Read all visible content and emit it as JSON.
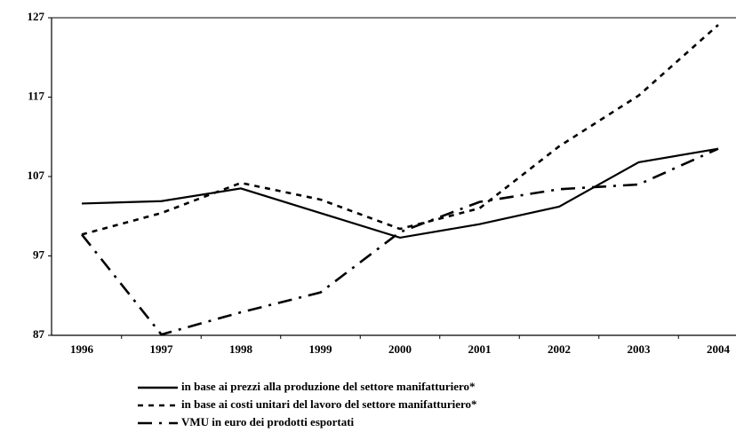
{
  "chart_data": {
    "type": "line",
    "categories": [
      "1996",
      "1997",
      "1998",
      "1999",
      "2000",
      "2001",
      "2002",
      "2003",
      "2004"
    ],
    "series": [
      {
        "name": "in base ai prezzi alla produzione del settore manifatturiero*",
        "color": "#000000",
        "dash": "solid",
        "values": [
          103.6,
          103.9,
          105.5,
          102.4,
          99.3,
          101.0,
          103.2,
          108.8,
          110.5
        ]
      },
      {
        "name": "in base ai costi unitari del lavoro del settore manifatturiero*",
        "color": "#000000",
        "dash": "short",
        "values": [
          99.7,
          102.4,
          106.2,
          104.1,
          100.4,
          103.0,
          110.8,
          117.2,
          126.1
        ]
      },
      {
        "name": "VMU in euro dei prodotti esportati",
        "color": "#000000",
        "dash": "long",
        "values": [
          99.7,
          87.1,
          89.9,
          92.4,
          100.0,
          103.8,
          105.4,
          106.0,
          110.5
        ]
      }
    ],
    "ylim": [
      87,
      127
    ],
    "yticks": [
      87,
      97,
      107,
      117,
      127
    ],
    "grid": false
  }
}
